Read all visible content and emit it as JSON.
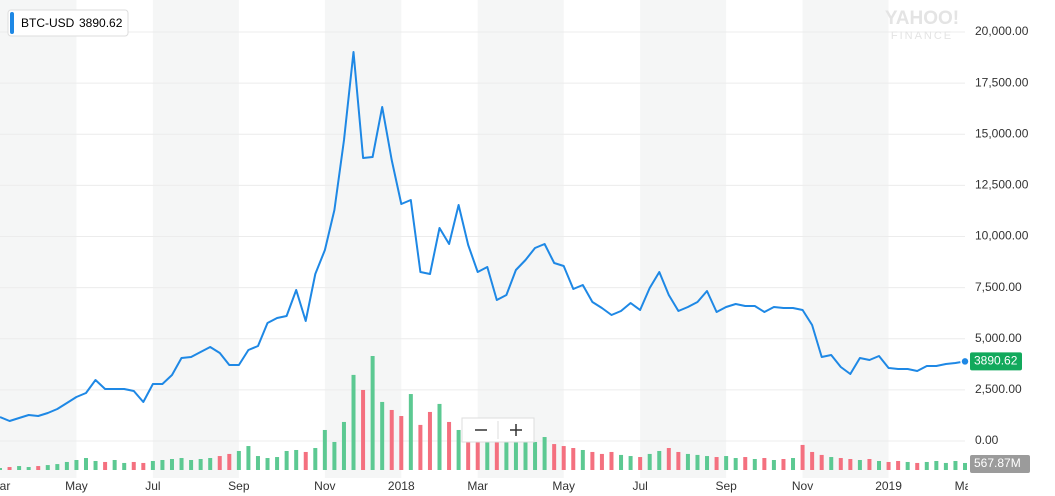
{
  "chart_data": {
    "type": "line",
    "watermark": [
      "YAHOO!",
      "FINANCE"
    ],
    "categories": [
      "Mar",
      null,
      null,
      null,
      null,
      null,
      null,
      null,
      "May",
      null,
      null,
      null,
      null,
      null,
      null,
      null,
      "Jul",
      null,
      null,
      null,
      null,
      null,
      null,
      null,
      null,
      "Sep",
      null,
      null,
      null,
      null,
      null,
      null,
      null,
      null,
      "Nov",
      null,
      null,
      null,
      null,
      null,
      null,
      null,
      "2018",
      null,
      null,
      null,
      null,
      null,
      null,
      null,
      "Mar",
      null,
      null,
      null,
      null,
      null,
      null,
      null,
      null,
      "May",
      null,
      null,
      null,
      null,
      null,
      null,
      null,
      "Jul",
      null,
      null,
      null,
      null,
      null,
      null,
      null,
      null,
      "Sep",
      null,
      null,
      null,
      null,
      null,
      null,
      null,
      "Nov",
      null,
      null,
      null,
      null,
      null,
      null,
      null,
      null,
      "2019",
      null,
      null,
      null,
      null,
      null,
      null,
      null,
      "Mar"
    ],
    "series": [
      {
        "name": "BTC-USD",
        "color": "#1e88e5",
        "values": [
          1170,
          978,
          1125,
          1271,
          1222,
          1369,
          1565,
          1858,
          2152,
          2347,
          2983,
          2543,
          2543,
          2543,
          2445,
          1907,
          2787,
          2787,
          3227,
          4059,
          4108,
          4352,
          4597,
          4303,
          3716,
          3716,
          4450,
          4645,
          5770,
          6015,
          6112,
          7384,
          5868,
          8166,
          9340,
          11296,
          14719,
          19022,
          13839,
          13888,
          16333,
          13741,
          11589,
          11785,
          8264,
          8166,
          10416,
          9633,
          11540,
          9584,
          8264,
          8509,
          6895,
          7139,
          8362,
          8851,
          9438,
          9633,
          8704,
          8558,
          7433,
          7628,
          6797,
          6504,
          6161,
          6357,
          6748,
          6406,
          7482,
          8264,
          7139,
          6357,
          6553,
          6797,
          7335,
          6308,
          6553,
          6699,
          6601,
          6601,
          6308,
          6553,
          6504,
          6504,
          6406,
          5672,
          4108,
          4205,
          3619,
          3276,
          4059,
          3961,
          4157,
          3570,
          3521,
          3521,
          3423,
          3667,
          3667,
          3765,
          3814,
          3890.62
        ]
      }
    ],
    "volume": {
      "up_color": "#5cc992",
      "down_color": "#f4707f",
      "last_value_label": "567.87M",
      "values": [
        160,
        240,
        320,
        240,
        320,
        400,
        480,
        650,
        810,
        970,
        730,
        650,
        810,
        570,
        650,
        570,
        730,
        810,
        890,
        970,
        810,
        890,
        970,
        1130,
        1300,
        1540,
        1940,
        1130,
        970,
        1050,
        1540,
        1620,
        1460,
        1780,
        3240,
        2270,
        3890,
        7700,
        6480,
        9230,
        5510,
        4860,
        4370,
        6150,
        3650,
        4700,
        5350,
        3890,
        3240,
        3400,
        3000,
        3240,
        2920,
        2590,
        2750,
        2430,
        2270,
        2670,
        2100,
        1940,
        1780,
        1620,
        1460,
        1300,
        1460,
        1220,
        1130,
        1050,
        1300,
        1540,
        1780,
        1460,
        1300,
        1220,
        1130,
        1050,
        1130,
        970,
        1050,
        890,
        970,
        810,
        890,
        970,
        2030,
        1460,
        1220,
        1050,
        970,
        890,
        810,
        890,
        730,
        650,
        730,
        650,
        570,
        650,
        730,
        570,
        730,
        567.87
      ]
    },
    "ylim": [
      0,
      20000
    ],
    "yticks": [
      {
        "value": 0,
        "label": "0.00"
      },
      {
        "value": 2500,
        "label": "2,500.00"
      },
      {
        "value": 5000,
        "label": "5,000.00"
      },
      {
        "value": 7500,
        "label": "7,500.00"
      },
      {
        "value": 10000,
        "label": "10,000.00"
      },
      {
        "value": 12500,
        "label": "12,500.00"
      },
      {
        "value": 15000,
        "label": "15,000.00"
      },
      {
        "value": 17500,
        "label": "17,500.00"
      },
      {
        "value": 20000,
        "label": "20,000.00"
      }
    ],
    "grid": true,
    "shade_color": "#f5f6f6",
    "last_tag_color": "#12a95c",
    "volume_tag_color": "#9b9b9b"
  }
}
